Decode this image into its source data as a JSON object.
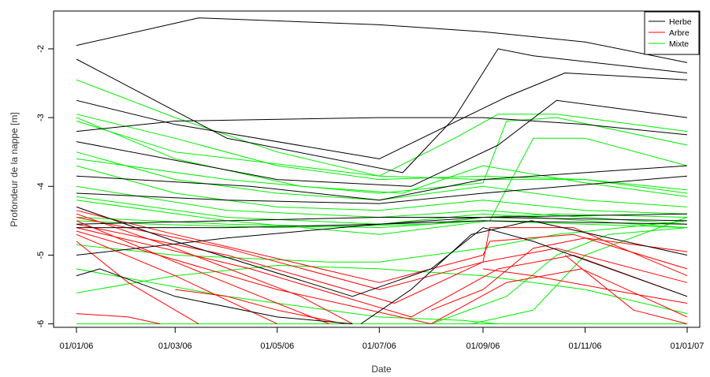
{
  "chart_data": {
    "type": "line",
    "xlabel": "Date",
    "ylabel": "Profondeur de la nappe [m]",
    "xlim": [
      "2006-01-01",
      "2007-01-01"
    ],
    "ylim": [
      -6.05,
      -1.45
    ],
    "x_ticks": [
      "01/01/06",
      "01/03/06",
      "01/05/06",
      "01/07/06",
      "01/09/06",
      "01/11/06",
      "01/01/07"
    ],
    "x_tick_dates": [
      "2006-01-01",
      "2006-03-01",
      "2006-05-01",
      "2006-07-01",
      "2006-09-01",
      "2006-11-01",
      "2007-01-01"
    ],
    "y_ticks": [
      -2,
      -3,
      -4,
      -5,
      -6
    ],
    "y_tick_labels": [
      "-2",
      "-3",
      "-4",
      "-5",
      "-6"
    ],
    "grid": false,
    "legend_position": "top-right",
    "series_colors": {
      "Herbe": "#000000",
      "Arbre": "#ff0000",
      "Mixte": "#00ee00"
    },
    "series": [
      {
        "name": "Herbe",
        "color": "#000000",
        "lines": [
          {
            "x": [
              "2006-01-01",
              "2006-03-15",
              "2006-07-01",
              "2006-09-01",
              "2006-11-01",
              "2007-01-01"
            ],
            "y": [
              -1.95,
              -1.55,
              -1.65,
              -1.75,
              -1.9,
              -2.2
            ]
          },
          {
            "x": [
              "2006-01-01",
              "2006-04-01",
              "2006-07-15",
              "2006-08-15",
              "2006-09-10",
              "2006-10-01",
              "2007-01-01"
            ],
            "y": [
              -2.15,
              -3.3,
              -3.8,
              -3.0,
              -2.0,
              -2.1,
              -2.35
            ]
          },
          {
            "x": [
              "2006-01-01",
              "2006-03-01",
              "2006-07-01",
              "2006-09-15",
              "2006-10-20",
              "2007-01-01"
            ],
            "y": [
              -2.75,
              -3.1,
              -3.6,
              -2.7,
              -2.35,
              -2.45
            ]
          },
          {
            "x": [
              "2006-01-01",
              "2006-03-01",
              "2006-07-01",
              "2006-09-01",
              "2006-11-01",
              "2007-01-01"
            ],
            "y": [
              -3.2,
              -3.05,
              -3.0,
              -3.0,
              -3.1,
              -3.25
            ]
          },
          {
            "x": [
              "2006-01-01",
              "2006-05-01",
              "2006-07-20",
              "2006-09-10",
              "2006-10-15",
              "2007-01-01"
            ],
            "y": [
              -3.35,
              -3.9,
              -4.0,
              -3.4,
              -2.75,
              -3.0
            ]
          },
          {
            "x": [
              "2006-01-01",
              "2006-04-15",
              "2006-07-01",
              "2006-09-01",
              "2007-01-01"
            ],
            "y": [
              -3.85,
              -4.0,
              -4.2,
              -3.9,
              -3.7
            ]
          },
          {
            "x": [
              "2006-01-01",
              "2006-04-01",
              "2006-07-01",
              "2006-09-01",
              "2007-01-01"
            ],
            "y": [
              -4.1,
              -4.2,
              -4.25,
              -4.1,
              -3.85
            ]
          },
          {
            "x": [
              "2006-01-01",
              "2006-04-01",
              "2006-07-01",
              "2006-09-01",
              "2007-01-01"
            ],
            "y": [
              -4.55,
              -4.5,
              -4.45,
              -4.45,
              -4.5
            ]
          },
          {
            "x": [
              "2006-01-01",
              "2006-04-01",
              "2006-07-01",
              "2006-09-01",
              "2007-01-01"
            ],
            "y": [
              -4.6,
              -4.6,
              -4.55,
              -4.5,
              -4.55
            ]
          },
          {
            "x": [
              "2006-01-01",
              "2006-04-01",
              "2006-07-01",
              "2006-09-01",
              "2007-01-01"
            ],
            "y": [
              -5.0,
              -4.75,
              -4.55,
              -4.45,
              -4.4
            ]
          },
          {
            "x": [
              "2006-01-01",
              "2006-01-15",
              "2006-03-01",
              "2006-05-01",
              "2006-06-15"
            ],
            "y": [
              -5.3,
              -5.2,
              -5.6,
              -5.9,
              -6.0
            ]
          },
          {
            "x": [
              "2006-01-01",
              "2006-03-01",
              "2006-06-15",
              "2006-08-01",
              "2006-09-01",
              "2006-10-01",
              "2007-01-01"
            ],
            "y": [
              -4.3,
              -4.8,
              -5.6,
              -5.2,
              -4.6,
              -4.8,
              -5.6
            ]
          },
          {
            "x": [
              "2006-06-20",
              "2006-07-20",
              "2006-08-25",
              "2006-09-30",
              "2007-01-01"
            ],
            "y": [
              -6.0,
              -5.5,
              -4.7,
              -4.5,
              -5.0
            ]
          }
        ]
      },
      {
        "name": "Arbre",
        "color": "#ff0000",
        "lines": [
          {
            "x": [
              "2006-01-01",
              "2006-03-01",
              "2006-05-15",
              "2006-06-15"
            ],
            "y": [
              -4.4,
              -4.9,
              -5.6,
              -6.0
            ]
          },
          {
            "x": [
              "2006-01-01",
              "2006-03-01",
              "2006-05-01",
              "2006-06-01"
            ],
            "y": [
              -4.5,
              -5.1,
              -5.7,
              -6.0
            ]
          },
          {
            "x": [
              "2006-01-01",
              "2006-03-01",
              "2006-05-01"
            ],
            "y": [
              -4.7,
              -5.3,
              -6.0
            ]
          },
          {
            "x": [
              "2006-01-01",
              "2006-02-01",
              "2006-03-15"
            ],
            "y": [
              -4.8,
              -5.4,
              -6.0
            ]
          },
          {
            "x": [
              "2006-01-01",
              "2006-03-01",
              "2006-07-01",
              "2006-09-01",
              "2006-09-05",
              "2006-10-25",
              "2007-01-01"
            ],
            "y": [
              -4.35,
              -4.7,
              -5.4,
              -5.0,
              -4.8,
              -4.7,
              -5.2
            ]
          },
          {
            "x": [
              "2006-01-01",
              "2006-04-01",
              "2006-07-01",
              "2006-09-01",
              "2006-09-05",
              "2006-10-25",
              "2007-01-01"
            ],
            "y": [
              -4.45,
              -4.9,
              -5.5,
              -5.1,
              -4.6,
              -4.6,
              -5.3
            ]
          },
          {
            "x": [
              "2006-01-01",
              "2006-04-01",
              "2006-07-10",
              "2006-09-01",
              "2006-10-15",
              "2007-01-01"
            ],
            "y": [
              -4.55,
              -5.0,
              -5.7,
              -5.1,
              -4.9,
              -5.4
            ]
          },
          {
            "x": [
              "2006-01-01",
              "2006-04-15",
              "2006-07-20",
              "2006-09-10",
              "2006-10-25",
              "2007-01-01"
            ],
            "y": [
              -4.6,
              -5.2,
              -5.9,
              -5.2,
              -5.0,
              -5.6
            ]
          },
          {
            "x": [
              "2006-01-01",
              "2006-05-01",
              "2006-08-01",
              "2006-09-15",
              "2006-10-30",
              "2007-01-01"
            ],
            "y": [
              -4.65,
              -5.5,
              -6.0,
              -5.4,
              -5.2,
              -5.9
            ]
          },
          {
            "x": [
              "2006-01-01",
              "2006-02-01",
              "2006-02-20"
            ],
            "y": [
              -5.85,
              -5.9,
              -6.0
            ]
          },
          {
            "x": [
              "2006-03-01",
              "2006-04-01",
              "2006-05-01",
              "2006-06-10"
            ],
            "y": [
              -5.5,
              -5.6,
              -5.8,
              -6.0
            ]
          },
          {
            "x": [
              "2006-09-01",
              "2006-10-01",
              "2006-11-15",
              "2007-01-01"
            ],
            "y": [
              -5.2,
              -5.3,
              -5.5,
              -5.7
            ]
          },
          {
            "x": [
              "2006-10-20",
              "2006-11-30",
              "2007-01-01"
            ],
            "y": [
              -5.0,
              -5.8,
              -6.0
            ]
          },
          {
            "x": [
              "2006-08-01",
              "2006-09-01",
              "2006-10-01",
              "2006-11-01",
              "2007-01-01"
            ],
            "y": [
              -5.8,
              -5.5,
              -4.9,
              -4.75,
              -4.95
            ]
          }
        ]
      },
      {
        "name": "Mixte",
        "color": "#00ee00",
        "lines": [
          {
            "x": [
              "2006-01-01",
              "2006-03-01",
              "2006-05-01",
              "2006-07-01",
              "2006-09-01",
              "2006-11-01",
              "2007-01-01"
            ],
            "y": [
              -2.45,
              -3.0,
              -3.5,
              -3.85,
              -3.9,
              -3.9,
              -4.05
            ]
          },
          {
            "x": [
              "2006-01-01",
              "2006-03-01",
              "2006-05-01",
              "2006-07-01",
              "2006-09-01",
              "2006-11-01",
              "2007-01-01"
            ],
            "y": [
              -2.95,
              -3.3,
              -3.7,
              -3.9,
              -3.85,
              -3.9,
              -4.1
            ]
          },
          {
            "x": [
              "2006-01-01",
              "2006-03-01",
              "2006-05-15",
              "2006-07-15",
              "2006-09-01",
              "2006-11-01",
              "2007-01-01"
            ],
            "y": [
              -3.0,
              -3.6,
              -4.0,
              -4.1,
              -3.7,
              -3.95,
              -4.15
            ]
          },
          {
            "x": [
              "2006-01-01",
              "2006-03-01",
              "2006-05-01",
              "2006-07-01",
              "2006-09-01",
              "2006-11-01",
              "2007-01-01"
            ],
            "y": [
              -3.5,
              -3.9,
              -4.1,
              -4.2,
              -4.0,
              -4.2,
              -4.3
            ]
          },
          {
            "x": [
              "2006-01-01",
              "2006-03-01",
              "2006-05-01",
              "2006-07-01",
              "2006-09-01",
              "2006-11-01",
              "2007-01-01"
            ],
            "y": [
              -3.7,
              -4.1,
              -4.3,
              -4.35,
              -4.2,
              -4.35,
              -4.4
            ]
          },
          {
            "x": [
              "2006-01-01",
              "2006-04-01",
              "2006-07-01",
              "2006-09-01",
              "2006-11-01",
              "2007-01-01"
            ],
            "y": [
              -4.0,
              -4.35,
              -4.45,
              -4.35,
              -4.45,
              -4.55
            ]
          },
          {
            "x": [
              "2006-01-01",
              "2006-04-01",
              "2006-07-01",
              "2006-09-01",
              "2006-11-01",
              "2007-01-01"
            ],
            "y": [
              -4.15,
              -4.45,
              -4.55,
              -4.4,
              -4.5,
              -4.6
            ]
          },
          {
            "x": [
              "2006-01-01",
              "2006-04-01",
              "2006-07-01",
              "2006-09-01",
              "2006-11-01",
              "2007-01-01"
            ],
            "y": [
              -4.45,
              -4.55,
              -4.6,
              -4.5,
              -4.55,
              -4.6
            ]
          },
          {
            "x": [
              "2006-01-01",
              "2006-03-01",
              "2006-07-01",
              "2006-08-15",
              "2006-09-10",
              "2006-10-15",
              "2007-01-01"
            ],
            "y": [
              -3.05,
              -3.5,
              -3.85,
              -3.3,
              -2.95,
              -2.95,
              -3.2
            ]
          },
          {
            "x": [
              "2006-01-01",
              "2006-04-01",
              "2006-07-01",
              "2006-09-01",
              "2006-09-15",
              "2006-10-15",
              "2007-01-01"
            ],
            "y": [
              -3.6,
              -3.9,
              -4.1,
              -3.95,
              -3.05,
              -3.0,
              -3.4
            ]
          },
          {
            "x": [
              "2006-01-01",
              "2006-04-01",
              "2006-07-01",
              "2006-09-05",
              "2006-10-01",
              "2006-11-01",
              "2007-01-01"
            ],
            "y": [
              -4.2,
              -4.5,
              -4.7,
              -4.5,
              -3.3,
              -3.3,
              -3.7
            ]
          },
          {
            "x": [
              "2006-01-01",
              "2006-03-01",
              "2006-06-01",
              "2006-07-01",
              "2006-09-01",
              "2006-10-15",
              "2007-01-01"
            ],
            "y": [
              -4.85,
              -5.0,
              -5.1,
              -5.1,
              -4.9,
              -4.7,
              -4.5
            ]
          },
          {
            "x": [
              "2006-01-01",
              "2006-03-01",
              "2006-05-01",
              "2006-07-01",
              "2006-09-01",
              "2006-11-01",
              "2007-01-01"
            ],
            "y": [
              -5.55,
              -5.3,
              -5.15,
              -5.2,
              -5.3,
              -5.5,
              -5.85
            ]
          },
          {
            "x": [
              "2006-01-01",
              "2006-04-01",
              "2006-07-01",
              "2006-08-20",
              "2006-09-10"
            ],
            "y": [
              -5.2,
              -5.6,
              -5.9,
              -5.95,
              -6.0
            ]
          },
          {
            "x": [
              "2006-08-01",
              "2006-09-15",
              "2006-10-15",
              "2006-11-15",
              "2007-01-01"
            ],
            "y": [
              -6.0,
              -5.6,
              -5.0,
              -4.7,
              -4.6
            ]
          },
          {
            "x": [
              "2006-08-25",
              "2006-10-01",
              "2006-11-01",
              "2007-01-01"
            ],
            "y": [
              -6.0,
              -5.8,
              -5.0,
              -4.45
            ]
          },
          {
            "x": [
              "2006-01-01",
              "2006-02-15",
              "2006-05-01",
              "2006-08-01",
              "2006-09-01",
              "2006-10-15",
              "2007-01-01"
            ],
            "y": [
              -4.5,
              -4.55,
              -4.6,
              -4.55,
              -4.45,
              -4.4,
              -4.45
            ]
          },
          {
            "x": [
              "2006-01-01",
              "2007-01-01"
            ],
            "y": [
              -6.0,
              -6.0
            ]
          }
        ]
      }
    ],
    "legend": [
      "Herbe",
      "Arbre",
      "Mixte"
    ]
  }
}
